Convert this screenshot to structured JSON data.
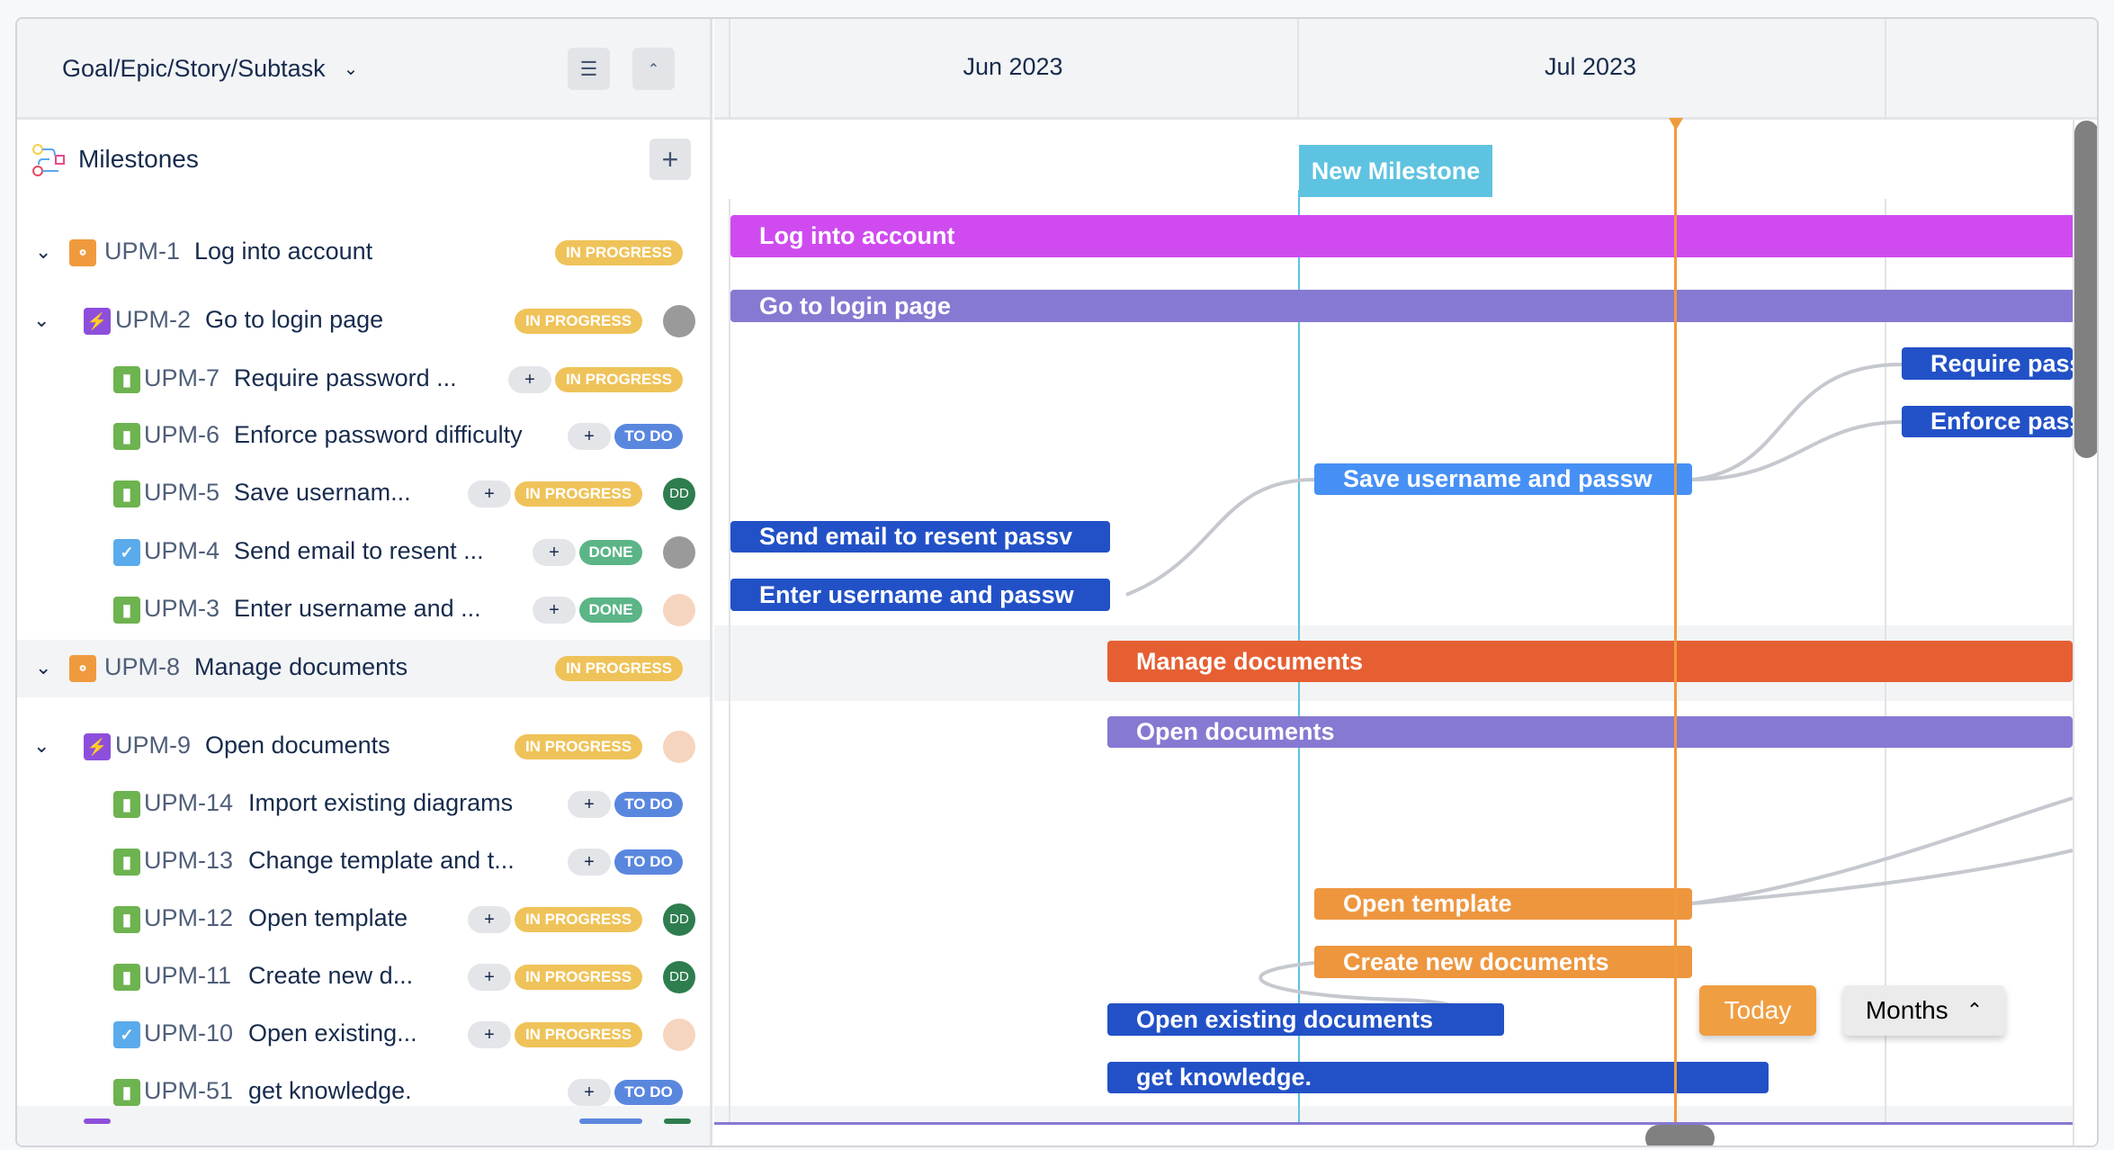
{
  "left_panel": {
    "hierarchy_label": "Goal/Epic/Story/Subtask",
    "milestones_label": "Milestones",
    "rows": [
      {
        "level": 0,
        "id": "UPM-1",
        "title": "Log into account",
        "type": "goal",
        "status": "IN PROGRESS",
        "avatar": null,
        "plus": false
      },
      {
        "level": 1,
        "id": "UPM-2",
        "title": "Go to login page",
        "type": "epic",
        "status": "IN PROGRESS",
        "avatar": "photo",
        "plus": false
      },
      {
        "level": 2,
        "id": "UPM-7",
        "title": "Require password ...",
        "type": "story",
        "status": "IN PROGRESS",
        "avatar": null,
        "plus": true
      },
      {
        "level": 2,
        "id": "UPM-6",
        "title": "Enforce password difficulty",
        "type": "story",
        "status": "TO DO",
        "avatar": null,
        "plus": true
      },
      {
        "level": 2,
        "id": "UPM-5",
        "title": "Save usernam...",
        "type": "story",
        "status": "IN PROGRESS",
        "avatar": "DD",
        "plus": true
      },
      {
        "level": 2,
        "id": "UPM-4",
        "title": "Send email to resent ...",
        "type": "task",
        "status": "DONE",
        "avatar": "photo",
        "plus": true
      },
      {
        "level": 2,
        "id": "UPM-3",
        "title": "Enter username and ...",
        "type": "story",
        "status": "DONE",
        "avatar": "cartoon",
        "plus": true
      },
      {
        "level": 0,
        "id": "UPM-8",
        "title": "Manage documents",
        "type": "goal",
        "status": "IN PROGRESS",
        "avatar": null,
        "plus": false,
        "grey": true
      },
      {
        "level": 1,
        "id": "UPM-9",
        "title": "Open documents",
        "type": "epic",
        "status": "IN PROGRESS",
        "avatar": "cartoon",
        "plus": false
      },
      {
        "level": 2,
        "id": "UPM-14",
        "title": "Import existing diagrams",
        "type": "story",
        "status": "TO DO",
        "avatar": null,
        "plus": true
      },
      {
        "level": 2,
        "id": "UPM-13",
        "title": "Change template and t...",
        "type": "story",
        "status": "TO DO",
        "avatar": null,
        "plus": true
      },
      {
        "level": 2,
        "id": "UPM-12",
        "title": "Open template",
        "type": "story",
        "status": "IN PROGRESS",
        "avatar": "DD",
        "plus": true
      },
      {
        "level": 2,
        "id": "UPM-11",
        "title": "Create new d...",
        "type": "story",
        "status": "IN PROGRESS",
        "avatar": "DD",
        "plus": true
      },
      {
        "level": 2,
        "id": "UPM-10",
        "title": "Open existing...",
        "type": "task",
        "status": "IN PROGRESS",
        "avatar": "cartoon",
        "plus": true
      },
      {
        "level": 2,
        "id": "UPM-51",
        "title": "get knowledge.",
        "type": "story",
        "status": "TO DO",
        "avatar": null,
        "plus": true
      }
    ]
  },
  "gantt": {
    "months": [
      "Jun 2023",
      "Jul 2023"
    ],
    "milestone": "New Milestone",
    "bars": [
      {
        "label": "Log into account",
        "color": "#cf4bf0"
      },
      {
        "label": "Go to login page",
        "color": "#8679d2"
      },
      {
        "label": "Require pass",
        "color": "#2251c7"
      },
      {
        "label": "Enforce pass",
        "color": "#2251c7"
      },
      {
        "label": "Save username and passw",
        "color": "#4690f5"
      },
      {
        "label": "Send email to resent passv",
        "color": "#2251c7"
      },
      {
        "label": "Enter username and passw",
        "color": "#2251c7"
      },
      {
        "label": "Manage documents",
        "color": "#e55f33"
      },
      {
        "label": "Open documents",
        "color": "#8679d2"
      },
      {
        "label": "Open template",
        "color": "#ee963e"
      },
      {
        "label": "Create new documents",
        "color": "#ee963e"
      },
      {
        "label": "Open existing documents",
        "color": "#2251c7"
      },
      {
        "label": "get knowledge.",
        "color": "#2251c7"
      }
    ],
    "today_label": "Today",
    "scale_label": "Months"
  },
  "colors": {
    "in_progress": "#efc359",
    "todo": "#5a87de",
    "done": "#5bb587",
    "today_line": "#f09a3e",
    "milestone": "#5ec3e1"
  }
}
